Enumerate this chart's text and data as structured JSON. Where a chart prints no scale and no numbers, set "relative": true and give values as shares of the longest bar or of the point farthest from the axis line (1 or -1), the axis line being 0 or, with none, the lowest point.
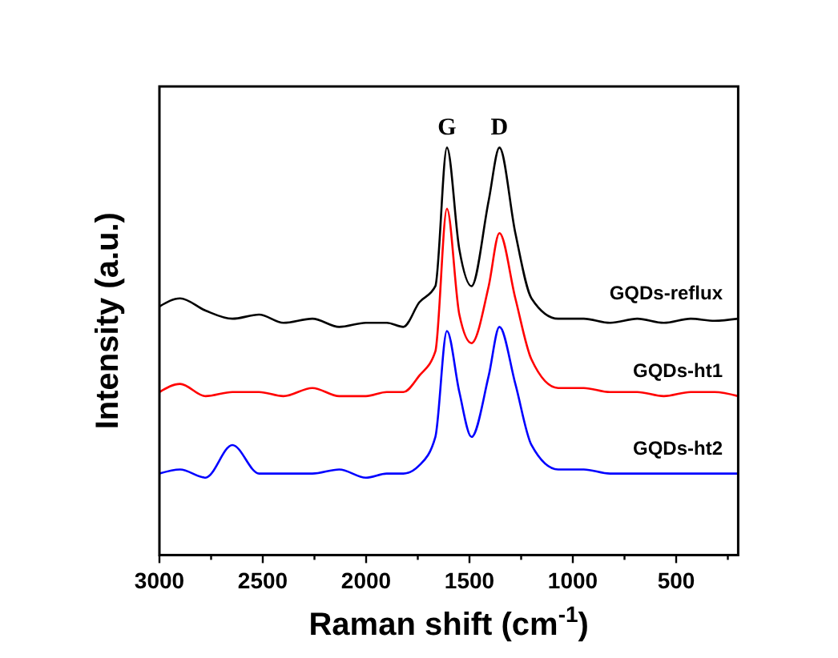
{
  "chart_data": {
    "type": "line",
    "relative": true,
    "xlabel": "Raman shift (cm$^{-1}$)",
    "ylabel": "Intensity (a.u.)",
    "x": [
      3000,
      2900,
      2777,
      2647,
      2518,
      2400,
      2260,
      2130,
      2001,
      1900,
      1820,
      1743,
      1665,
      1609,
      1549,
      1490,
      1407,
      1355,
      1278,
      1200,
      1071,
      947,
      820,
      688,
      560,
      430,
      314,
      200
    ],
    "xlim": [
      3000,
      200
    ],
    "xticks": [
      3000,
      {
        "value": 2750,
        "label": null
      },
      2500,
      {
        "value": 2250,
        "label": null
      },
      2000,
      {
        "value": 1750,
        "label": null
      },
      1500,
      {
        "value": 1250,
        "label": null
      },
      1000,
      {
        "value": 750,
        "label": null
      },
      500,
      {
        "value": 250,
        "label": null
      }
    ],
    "annotations": [
      {
        "text": "G",
        "x": 1609,
        "y": 1.0
      },
      {
        "text": "D",
        "x": 1355,
        "y": 1.0
      }
    ],
    "grid": false,
    "legend": false,
    "marker": "none",
    "line_style": "solid",
    "series": [
      {
        "name": "GQDs-reflux",
        "color": "#000000",
        "values": [
          0.61,
          0.63,
          0.6,
          0.58,
          0.59,
          0.57,
          0.58,
          0.56,
          0.57,
          0.57,
          0.56,
          0.62,
          0.66,
          1.0,
          0.75,
          0.66,
          0.87,
          1.0,
          0.79,
          0.63,
          0.58,
          0.58,
          0.57,
          0.58,
          0.57,
          0.58,
          0.575,
          0.58
        ]
      },
      {
        "name": "GQDs-ht1",
        "color": "#ff0000",
        "values": [
          0.4,
          0.42,
          0.39,
          0.4,
          0.4,
          0.39,
          0.41,
          0.39,
          0.39,
          0.4,
          0.4,
          0.44,
          0.5,
          0.85,
          0.59,
          0.52,
          0.66,
          0.79,
          0.63,
          0.48,
          0.41,
          0.41,
          0.4,
          0.4,
          0.39,
          0.4,
          0.4,
          0.39
        ]
      },
      {
        "name": "GQDs-ht2",
        "color": "#0000ff",
        "values": [
          0.2,
          0.21,
          0.19,
          0.27,
          0.2,
          0.2,
          0.2,
          0.21,
          0.19,
          0.2,
          0.2,
          0.22,
          0.29,
          0.55,
          0.4,
          0.29,
          0.44,
          0.56,
          0.42,
          0.27,
          0.21,
          0.21,
          0.2,
          0.2,
          0.2,
          0.2,
          0.2,
          0.2
        ]
      }
    ]
  }
}
